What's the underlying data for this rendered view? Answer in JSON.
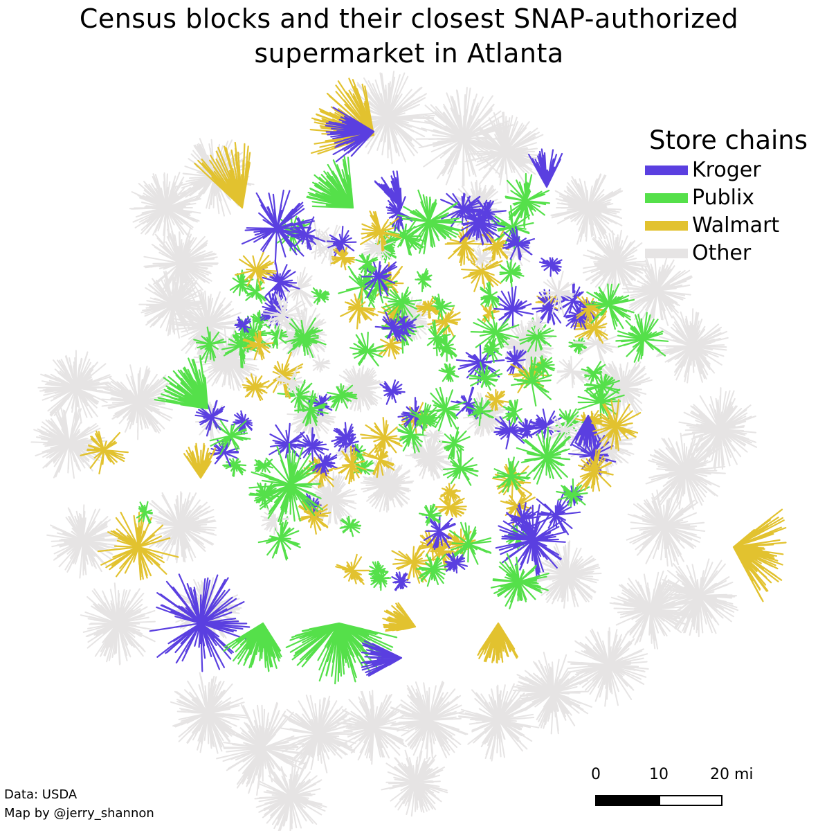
{
  "title_line1": "Census blocks and their closest SNAP-authorized",
  "title_line2": "supermarket in Atlanta",
  "legend": {
    "title": "Store chains",
    "items": [
      {
        "label": "Kroger",
        "color": "#5a3fe0"
      },
      {
        "label": "Publix",
        "color": "#55e04a"
      },
      {
        "label": "Walmart",
        "color": "#e2c22f"
      },
      {
        "label": "Other",
        "color": "#e6e4e4"
      }
    ]
  },
  "scale": {
    "labels": [
      "0",
      "10",
      "20 mi"
    ]
  },
  "credits": {
    "data": "Data: USDA",
    "author": "Map by @jerry_shannon"
  }
}
